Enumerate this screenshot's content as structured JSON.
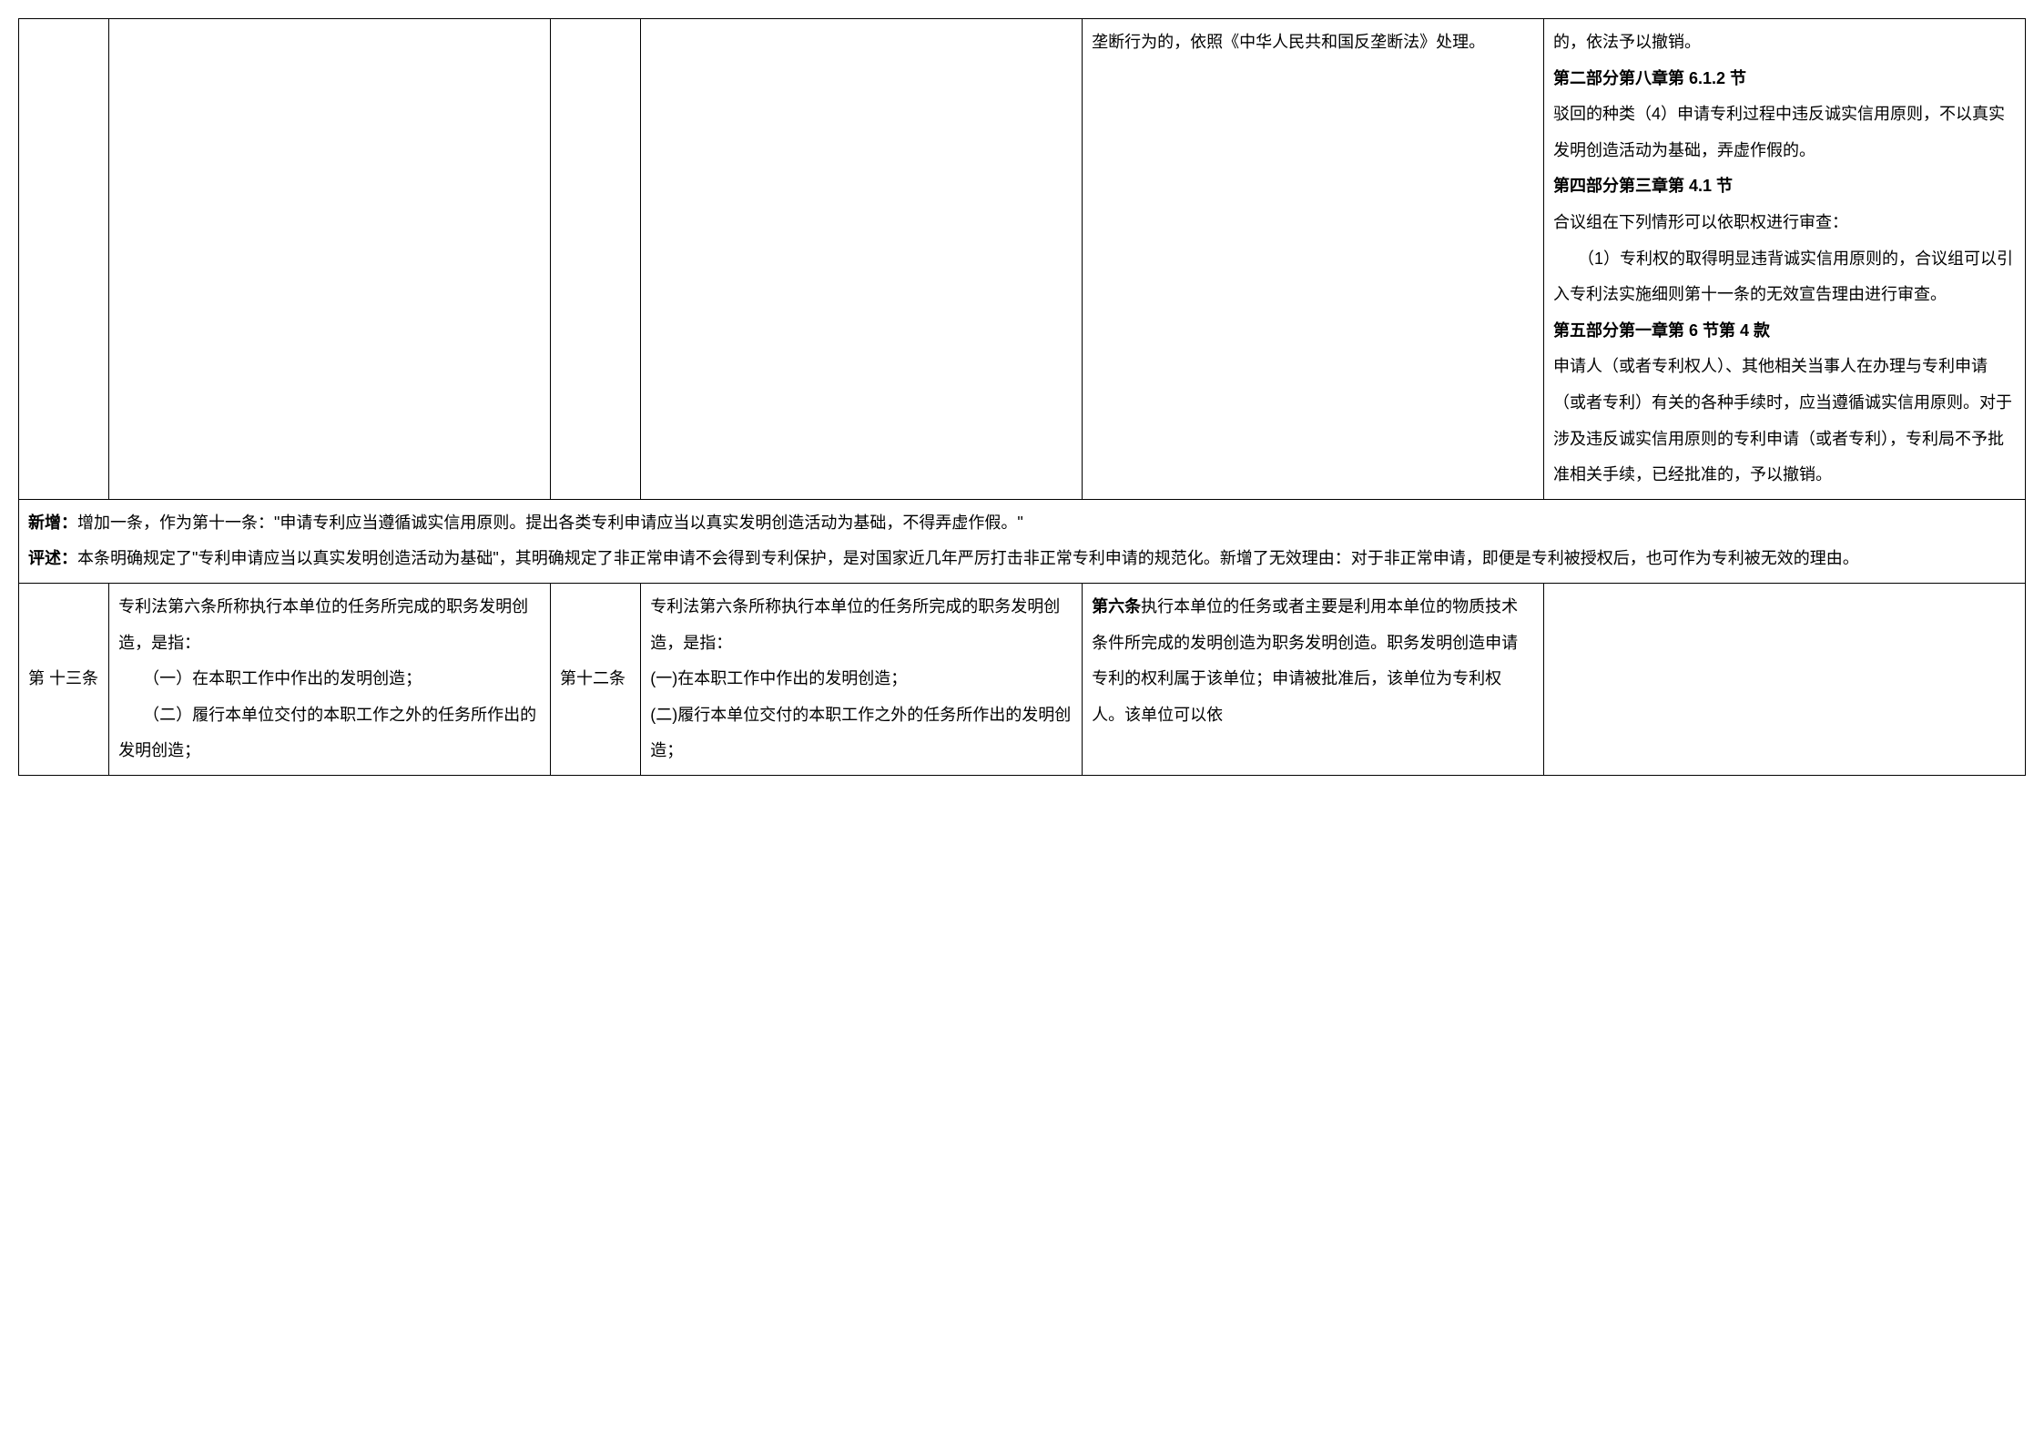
{
  "row1": {
    "col_e": "垄断行为的，依照《中华人民共和国反垄断法》处理。",
    "col_f": {
      "p1": "的，依法予以撤销。",
      "h1": "第二部分第八章第 6.1.2 节",
      "p2": "驳回的种类（4）申请专利过程中违反诚实信用原则，不以真实发明创造活动为基础，弄虚作假的。",
      "h2": "第四部分第三章第 4.1 节",
      "p3": "合议组在下列情形可以依职权进行审查：",
      "p4": "（1）专利权的取得明显违背诚实信用原则的，合议组可以引入专利法实施细则第十一条的无效宣告理由进行审查。",
      "h3": "第五部分第一章第 6 节第 4 款",
      "p5": "申请人（或者专利权人）、其他相关当事人在办理与专利申请（或者专利）有关的各种手续时，应当遵循诚实信用原则。对于涉及违反诚实信用原则的专利申请（或者专利），专利局不予批准相关手续，已经批准的，予以撤销。"
    }
  },
  "row2": {
    "new_label": "新增：",
    "new_text": "增加一条，作为第十一条：\"申请专利应当遵循诚实信用原则。提出各类专利申请应当以真实发明创造活动为基础，不得弄虚作假。\"",
    "comment_label": "评述：",
    "comment_text": "本条明确规定了\"专利申请应当以真实发明创造活动为基础\"，其明确规定了非正常申请不会得到专利保护，是对国家近几年严厉打击非正常专利申请的规范化。新增了无效理由：对于非正常申请，即便是专利被授权后，也可作为专利被无效的理由。"
  },
  "row3": {
    "col_a": "第 十三条",
    "col_b": {
      "p1": "专利法第六条所称执行本单位的任务所完成的职务发明创造，是指：",
      "p2": "（一）在本职工作中作出的发明创造；",
      "p3": "（二）履行本单位交付的本职工作之外的任务所作出的发明创造；"
    },
    "col_c": "第十二条",
    "col_d": {
      "p1": "专利法第六条所称执行本单位的任务所完成的职务发明创造，是指：",
      "p2": "(一)在本职工作中作出的发明创造；",
      "p3": "(二)履行本单位交付的本职工作之外的任务所作出的发明创造；"
    },
    "col_e": {
      "bold": "第六条",
      "text": "执行本单位的任务或者主要是利用本单位的物质技术条件所完成的发明创造为职务发明创造。职务发明创造申请专利的权利属于该单位；申请被批准后，该单位为专利权人。该单位可以依"
    },
    "col_f": ""
  }
}
